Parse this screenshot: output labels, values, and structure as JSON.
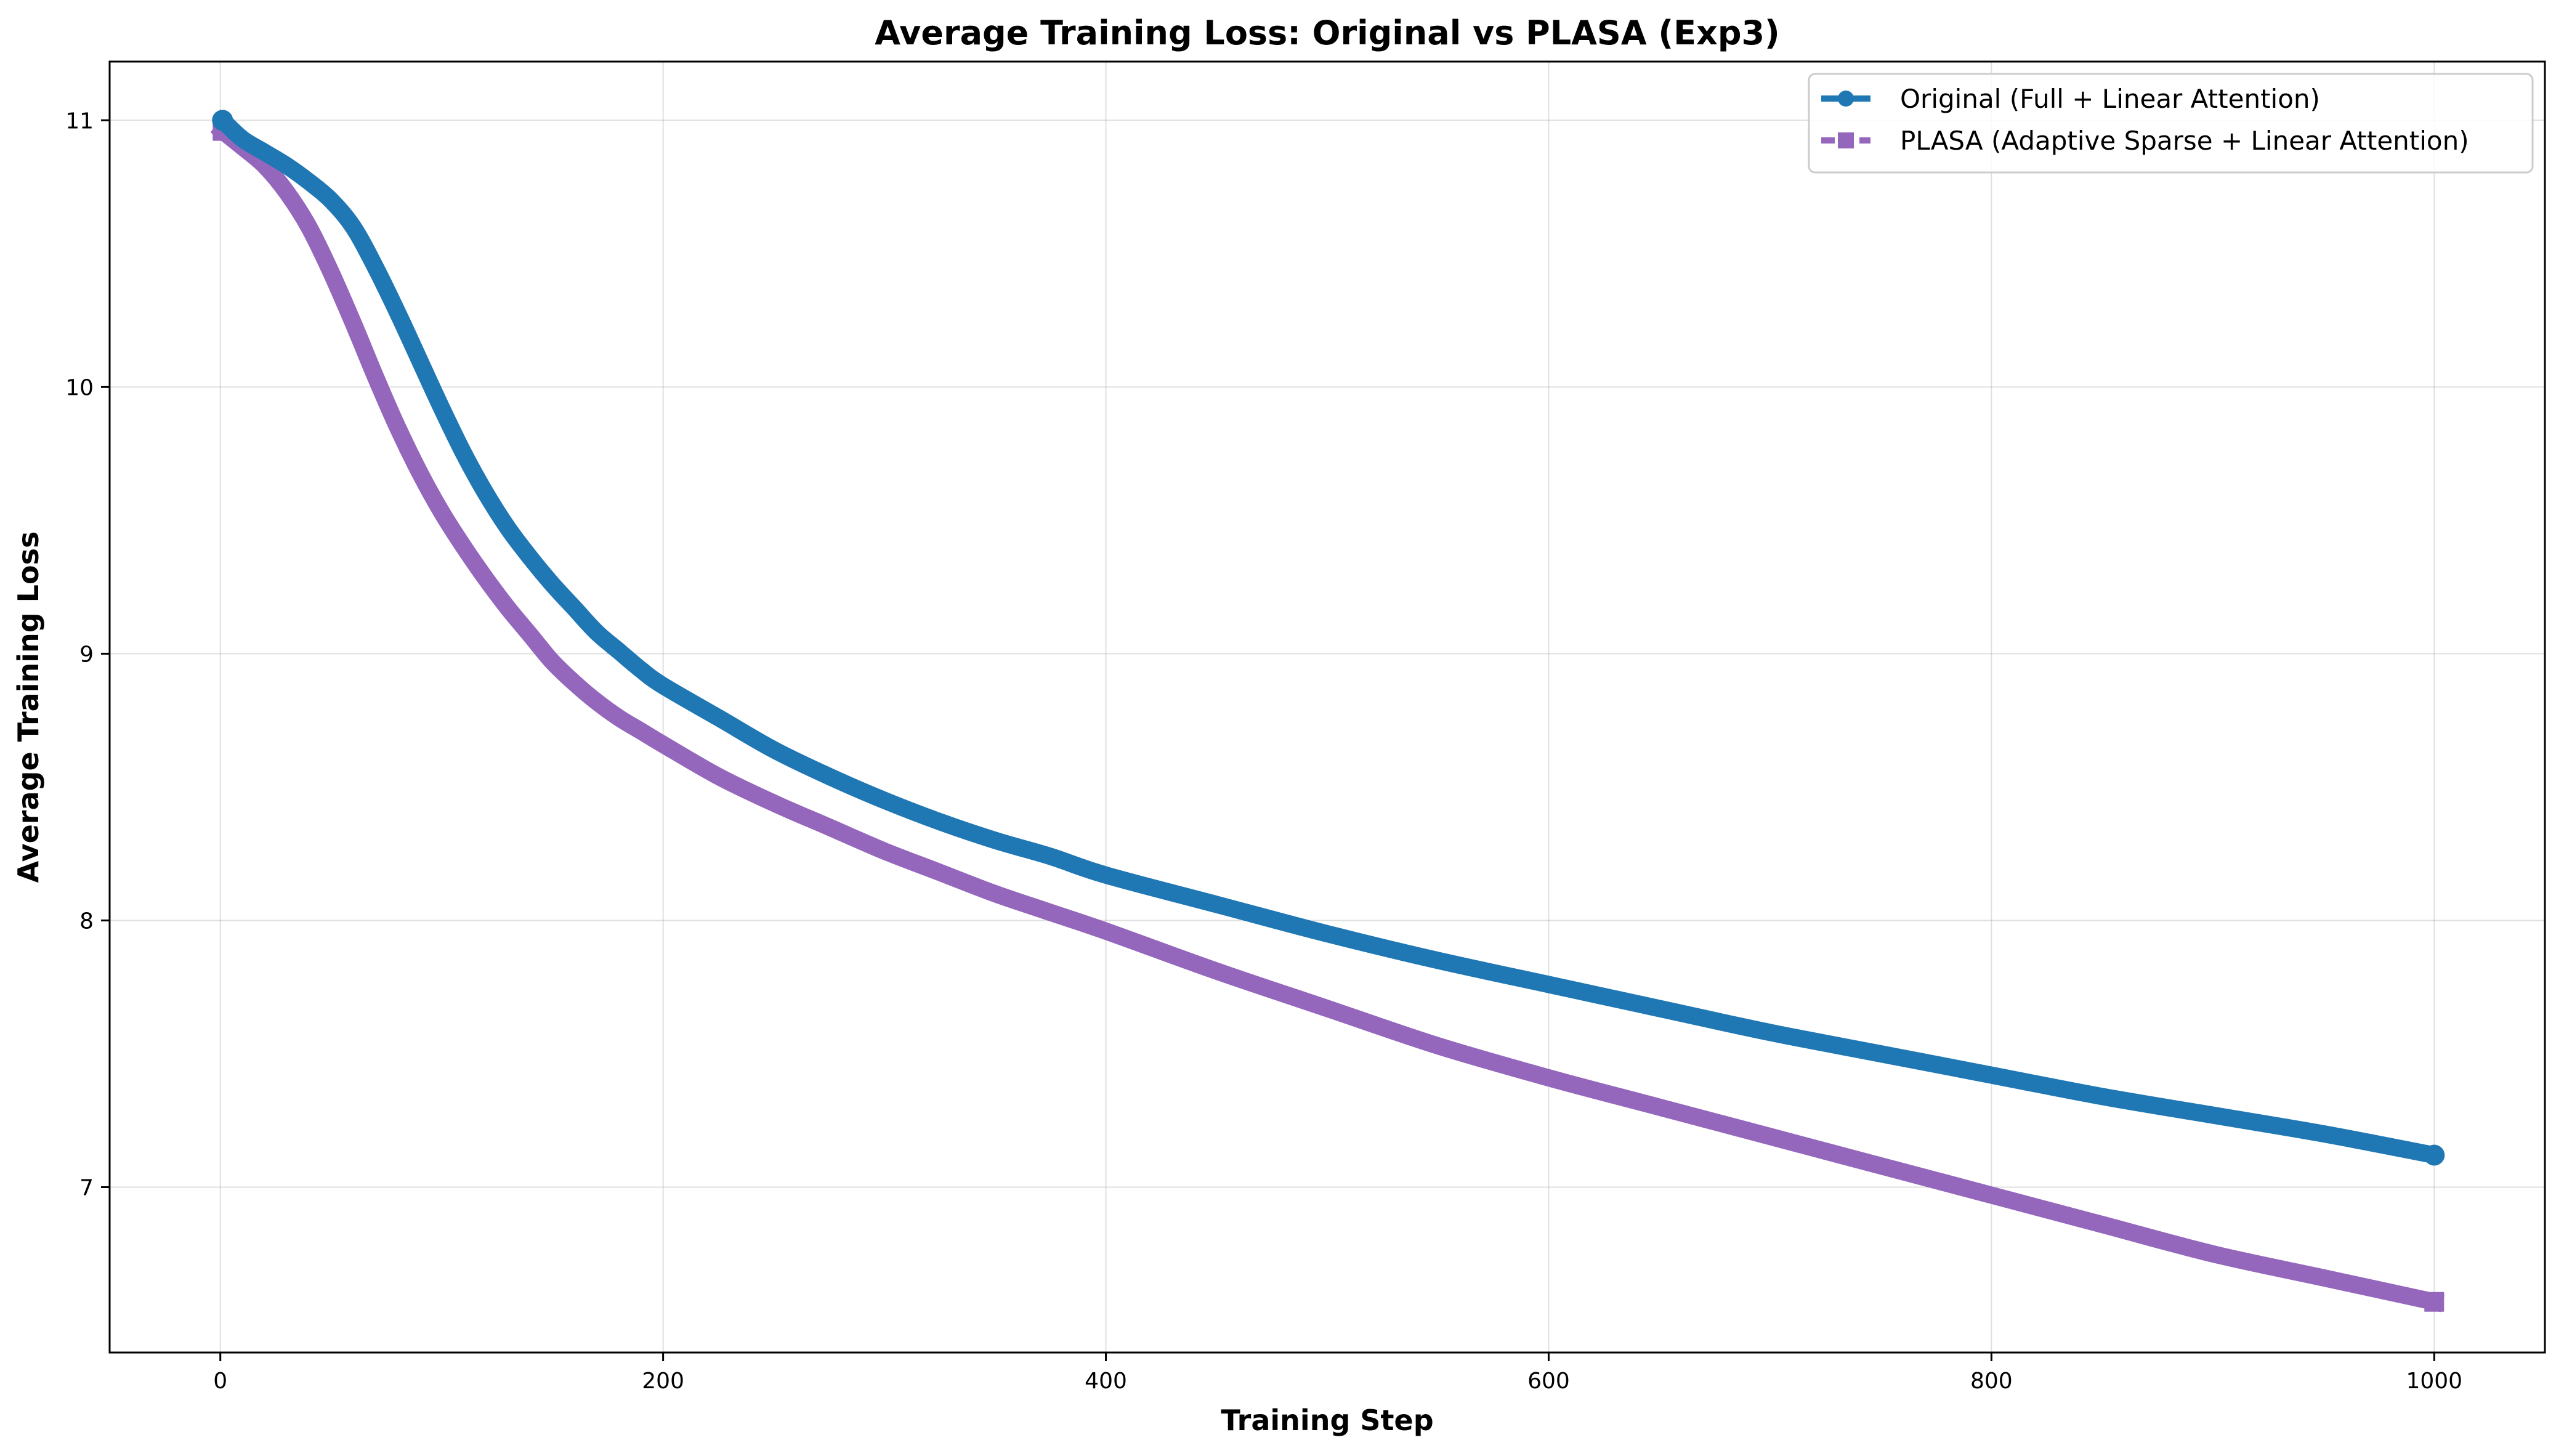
{
  "chart_data": {
    "type": "line",
    "title": "Average Training Loss: Original vs PLASA (Exp3)",
    "xlabel": "Training Step",
    "ylabel": "Average Training Loss",
    "xlim": [
      -50,
      1050
    ],
    "ylim": [
      6.38,
      11.22
    ],
    "xticks": [
      0,
      200,
      400,
      600,
      800,
      1000
    ],
    "yticks": [
      7,
      8,
      9,
      10,
      11
    ],
    "grid": true,
    "legend_position": "top-right",
    "series": [
      {
        "name": "Original (Full + Linear Attention)",
        "color": "#1f77b4",
        "marker": "circle",
        "line_style": "solid",
        "x": [
          1,
          10,
          20,
          30,
          40,
          50,
          60,
          70,
          80,
          90,
          100,
          110,
          120,
          130,
          140,
          150,
          160,
          170,
          180,
          190,
          200,
          225,
          250,
          275,
          300,
          325,
          350,
          375,
          400,
          450,
          500,
          550,
          600,
          650,
          700,
          750,
          800,
          850,
          900,
          950,
          1000
        ],
        "y": [
          11.0,
          10.93,
          10.88,
          10.83,
          10.77,
          10.7,
          10.6,
          10.45,
          10.28,
          10.1,
          9.92,
          9.75,
          9.6,
          9.47,
          9.36,
          9.26,
          9.17,
          9.08,
          9.01,
          8.94,
          8.88,
          8.76,
          8.64,
          8.54,
          8.45,
          8.37,
          8.3,
          8.24,
          8.17,
          8.06,
          7.95,
          7.85,
          7.76,
          7.67,
          7.58,
          7.5,
          7.42,
          7.34,
          7.27,
          7.2,
          7.12
        ]
      },
      {
        "name": "PLASA (Adaptive Sparse + Linear Attention)",
        "color": "#9467bd",
        "marker": "square",
        "line_style": "dashed",
        "x": [
          1,
          10,
          20,
          30,
          40,
          50,
          60,
          70,
          80,
          90,
          100,
          110,
          120,
          130,
          140,
          150,
          160,
          170,
          180,
          190,
          200,
          225,
          250,
          275,
          300,
          325,
          350,
          375,
          400,
          450,
          500,
          550,
          600,
          650,
          700,
          750,
          800,
          850,
          900,
          950,
          1000
        ],
        "y": [
          10.96,
          10.9,
          10.83,
          10.73,
          10.6,
          10.43,
          10.24,
          10.04,
          9.85,
          9.68,
          9.53,
          9.4,
          9.28,
          9.17,
          9.07,
          8.97,
          8.89,
          8.82,
          8.76,
          8.71,
          8.66,
          8.54,
          8.44,
          8.35,
          8.26,
          8.18,
          8.1,
          8.03,
          7.96,
          7.81,
          7.67,
          7.53,
          7.41,
          7.3,
          7.19,
          7.08,
          6.97,
          6.86,
          6.75,
          6.66,
          6.57
        ]
      }
    ]
  }
}
